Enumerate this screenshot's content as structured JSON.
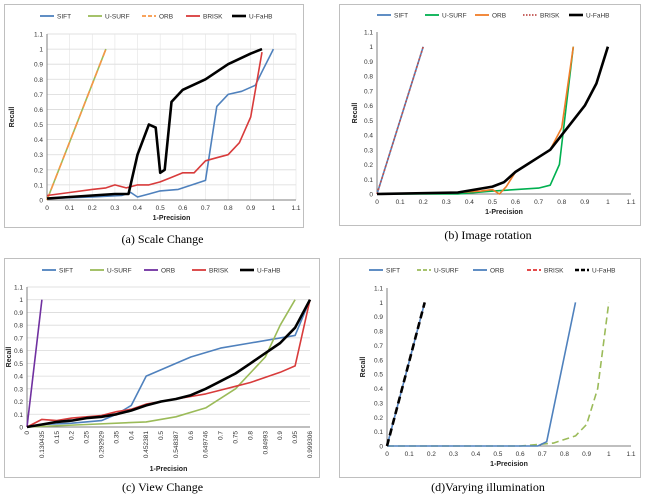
{
  "chart_data": [
    {
      "type": "line",
      "caption": "(a)  Scale Change",
      "xlabel": "1-Precision",
      "ylabel": "Recall",
      "xlim": [
        0,
        1.1
      ],
      "ylim": [
        0,
        1.1
      ],
      "x_ticks": [
        "0",
        "0.1",
        "0.2",
        "0.3",
        "0.4",
        "0.5",
        "0.6",
        "0.7",
        "0.8",
        "0.9",
        "1",
        "1.1"
      ],
      "y_ticks": [
        "0",
        "0.1",
        "0.2",
        "0.3",
        "0.4",
        "0.5",
        "0.6",
        "0.7",
        "0.8",
        "0.9",
        "1",
        "1.1"
      ],
      "legend": "top",
      "grid": true,
      "series": [
        {
          "name": "SIFT",
          "color": "#4f81bd",
          "style": "solid",
          "points": [
            [
              0.0,
              0.01
            ],
            [
              0.2,
              0.02
            ],
            [
              0.33,
              0.03
            ],
            [
              0.37,
              0.05
            ],
            [
              0.4,
              0.02
            ],
            [
              0.45,
              0.04
            ],
            [
              0.5,
              0.06
            ],
            [
              0.58,
              0.07
            ],
            [
              0.64,
              0.1
            ],
            [
              0.7,
              0.13
            ],
            [
              0.75,
              0.62
            ],
            [
              0.8,
              0.7
            ],
            [
              0.86,
              0.72
            ],
            [
              0.92,
              0.76
            ],
            [
              0.95,
              0.85
            ],
            [
              1.0,
              1.0
            ]
          ]
        },
        {
          "name": "U-SURF",
          "color": "#9bbb59",
          "style": "solid",
          "points": [
            [
              0.0,
              0.0
            ],
            [
              0.26,
              1.0
            ]
          ]
        },
        {
          "name": "ORB",
          "color": "#f79646",
          "style": "dashed",
          "points": [
            [
              0.0,
              0.0
            ],
            [
              0.26,
              1.0
            ]
          ]
        },
        {
          "name": "BRISK",
          "color": "#d83b3b",
          "style": "solid",
          "points": [
            [
              0.0,
              0.03
            ],
            [
              0.1,
              0.05
            ],
            [
              0.2,
              0.07
            ],
            [
              0.26,
              0.08
            ],
            [
              0.3,
              0.1
            ],
            [
              0.35,
              0.08
            ],
            [
              0.4,
              0.1
            ],
            [
              0.45,
              0.1
            ],
            [
              0.5,
              0.12
            ],
            [
              0.55,
              0.15
            ],
            [
              0.6,
              0.18
            ],
            [
              0.65,
              0.18
            ],
            [
              0.7,
              0.26
            ],
            [
              0.75,
              0.28
            ],
            [
              0.8,
              0.3
            ],
            [
              0.85,
              0.38
            ],
            [
              0.9,
              0.55
            ],
            [
              0.95,
              0.98
            ]
          ]
        },
        {
          "name": "U-FaHB",
          "color": "#000000",
          "style": "solid",
          "points": [
            [
              0.0,
              0.01
            ],
            [
              0.1,
              0.02
            ],
            [
              0.2,
              0.03
            ],
            [
              0.3,
              0.04
            ],
            [
              0.36,
              0.04
            ],
            [
              0.4,
              0.3
            ],
            [
              0.45,
              0.5
            ],
            [
              0.48,
              0.48
            ],
            [
              0.5,
              0.18
            ],
            [
              0.52,
              0.2
            ],
            [
              0.55,
              0.65
            ],
            [
              0.6,
              0.73
            ],
            [
              0.7,
              0.8
            ],
            [
              0.8,
              0.9
            ],
            [
              0.9,
              0.97
            ],
            [
              0.95,
              1.0
            ]
          ]
        }
      ]
    },
    {
      "type": "line",
      "caption": "(b)  Image rotation",
      "xlabel": "1-Precision",
      "ylabel": "Recall",
      "xlim": [
        0,
        1.1
      ],
      "ylim": [
        0,
        1.1
      ],
      "x_ticks": [
        "0",
        "0.1",
        "0.2",
        "0.3",
        "0.4",
        "0.5",
        "0.6",
        "0.7",
        "0.8",
        "0.9",
        "1",
        "1.1"
      ],
      "y_ticks": [
        "0",
        "0.1",
        "0.2",
        "0.3",
        "0.4",
        "0.5",
        "0.6",
        "0.7",
        "0.8",
        "0.9",
        "1",
        "1.1"
      ],
      "legend": "top",
      "grid": false,
      "series": [
        {
          "name": "SIFT",
          "color": "#4f81bd",
          "style": "solid",
          "points": [
            [
              0.0,
              0.0
            ],
            [
              0.2,
              1.0
            ]
          ]
        },
        {
          "name": "U-SURF",
          "color": "#00b050",
          "style": "solid",
          "points": [
            [
              0.0,
              0.0
            ],
            [
              0.35,
              0.0
            ],
            [
              0.5,
              0.02
            ],
            [
              0.6,
              0.03
            ],
            [
              0.7,
              0.04
            ],
            [
              0.75,
              0.06
            ],
            [
              0.79,
              0.2
            ],
            [
              0.82,
              0.6
            ],
            [
              0.85,
              1.0
            ]
          ]
        },
        {
          "name": "ORB",
          "color": "#f07d28",
          "style": "solid",
          "points": [
            [
              0.0,
              0.0
            ],
            [
              0.35,
              0.01
            ],
            [
              0.45,
              0.02
            ],
            [
              0.5,
              0.03
            ],
            [
              0.53,
              0.0
            ],
            [
              0.56,
              0.05
            ],
            [
              0.6,
              0.15
            ],
            [
              0.65,
              0.2
            ],
            [
              0.7,
              0.25
            ],
            [
              0.75,
              0.3
            ],
            [
              0.8,
              0.45
            ],
            [
              0.85,
              1.0
            ]
          ]
        },
        {
          "name": "BRISK",
          "color": "#c0504d",
          "style": "dotted",
          "points": [
            [
              0.0,
              0.0
            ],
            [
              0.2,
              1.0
            ]
          ]
        },
        {
          "name": "U-FaHB",
          "color": "#000000",
          "style": "solid",
          "points": [
            [
              0.0,
              0.0
            ],
            [
              0.35,
              0.01
            ],
            [
              0.5,
              0.05
            ],
            [
              0.55,
              0.08
            ],
            [
              0.6,
              0.15
            ],
            [
              0.65,
              0.2
            ],
            [
              0.7,
              0.25
            ],
            [
              0.75,
              0.3
            ],
            [
              0.8,
              0.4
            ],
            [
              0.9,
              0.6
            ],
            [
              0.95,
              0.75
            ],
            [
              1.0,
              1.0
            ]
          ]
        }
      ]
    },
    {
      "type": "line",
      "caption": "(c) View Change",
      "xlabel": "1-Precision",
      "ylabel": "Recall",
      "ylim": [
        0,
        1.1
      ],
      "x_ticks": [
        "0",
        "0.130435",
        "0.15",
        "0.2",
        "0.25",
        "0.292929",
        "0.35",
        "0.4",
        "0.452381",
        "0.5",
        "0.548387",
        "0.6",
        "0.649746",
        "0.7",
        "0.75",
        "0.8",
        "0.84993",
        "0.9",
        "0.95",
        "0.999306"
      ],
      "y_ticks": [
        "0",
        "0.1",
        "0.2",
        "0.3",
        "0.4",
        "0.5",
        "0.6",
        "0.7",
        "0.8",
        "0.9",
        "1",
        "1.1"
      ],
      "legend": "top",
      "grid": true,
      "series": [
        {
          "name": "SIFT",
          "color": "#4f81bd",
          "style": "solid",
          "points": [
            [
              0,
              0.0
            ],
            [
              1,
              0.02
            ],
            [
              3,
              0.03
            ],
            [
              5,
              0.05
            ],
            [
              6,
              0.1
            ],
            [
              7,
              0.17
            ],
            [
              8,
              0.4
            ],
            [
              10,
              0.5
            ],
            [
              11,
              0.55
            ],
            [
              13,
              0.62
            ],
            [
              15,
              0.66
            ],
            [
              17,
              0.7
            ],
            [
              18,
              0.72
            ],
            [
              19,
              1.0
            ]
          ]
        },
        {
          "name": "U-SURF",
          "color": "#9bbb59",
          "style": "solid",
          "points": [
            [
              0,
              0.0
            ],
            [
              4,
              0.02
            ],
            [
              8,
              0.04
            ],
            [
              10,
              0.08
            ],
            [
              12,
              0.15
            ],
            [
              14,
              0.3
            ],
            [
              16,
              0.55
            ],
            [
              17,
              0.8
            ],
            [
              18,
              1.0
            ]
          ]
        },
        {
          "name": "ORB",
          "color": "#7030a0",
          "style": "solid",
          "points": [
            [
              0,
              0.0
            ],
            [
              1,
              1.0
            ]
          ]
        },
        {
          "name": "BRISK",
          "color": "#d83b3b",
          "style": "solid",
          "points": [
            [
              0,
              0.0
            ],
            [
              1,
              0.06
            ],
            [
              2,
              0.05
            ],
            [
              3,
              0.07
            ],
            [
              4,
              0.08
            ],
            [
              5,
              0.09
            ],
            [
              6,
              0.12
            ],
            [
              7,
              0.14
            ],
            [
              8,
              0.18
            ],
            [
              9,
              0.2
            ],
            [
              10,
              0.22
            ],
            [
              11,
              0.24
            ],
            [
              12,
              0.26
            ],
            [
              13,
              0.29
            ],
            [
              14,
              0.32
            ],
            [
              15,
              0.35
            ],
            [
              16,
              0.39
            ],
            [
              17,
              0.43
            ],
            [
              18,
              0.48
            ],
            [
              19,
              1.0
            ]
          ]
        },
        {
          "name": "U-FaHB",
          "color": "#000000",
          "style": "solid",
          "points": [
            [
              0,
              0.0
            ],
            [
              1,
              0.02
            ],
            [
              2,
              0.04
            ],
            [
              3,
              0.05
            ],
            [
              4,
              0.07
            ],
            [
              5,
              0.08
            ],
            [
              6,
              0.1
            ],
            [
              7,
              0.13
            ],
            [
              8,
              0.17
            ],
            [
              9,
              0.2
            ],
            [
              10,
              0.22
            ],
            [
              11,
              0.25
            ],
            [
              12,
              0.3
            ],
            [
              13,
              0.36
            ],
            [
              14,
              0.42
            ],
            [
              15,
              0.5
            ],
            [
              16,
              0.58
            ],
            [
              17,
              0.66
            ],
            [
              18,
              0.78
            ],
            [
              19,
              1.0
            ]
          ]
        }
      ]
    },
    {
      "type": "line",
      "caption": "(d)Varying illumination",
      "xlabel": "1-Precision",
      "ylabel": "Recall",
      "xlim": [
        0,
        1.1
      ],
      "ylim": [
        0,
        1.1
      ],
      "x_ticks": [
        "0",
        "0.1",
        "0.2",
        "0.3",
        "0.4",
        "0.5",
        "0.6",
        "0.7",
        "0.8",
        "0.9",
        "1",
        "1.1"
      ],
      "y_ticks": [
        "0",
        "0.1",
        "0.2",
        "0.3",
        "0.4",
        "0.5",
        "0.6",
        "0.7",
        "0.8",
        "0.9",
        "1",
        "1.1"
      ],
      "legend": "top",
      "grid": false,
      "series": [
        {
          "name": "SIFT",
          "color": "#4f81bd",
          "style": "solid",
          "points": [
            [
              0.0,
              0.0
            ],
            [
              0.17,
              1.0
            ]
          ]
        },
        {
          "name": "U-SURF",
          "color": "#9bbb59",
          "style": "dashed",
          "points": [
            [
              0.0,
              0.0
            ],
            [
              0.6,
              0.0
            ],
            [
              0.75,
              0.02
            ],
            [
              0.85,
              0.07
            ],
            [
              0.9,
              0.15
            ],
            [
              0.95,
              0.4
            ],
            [
              1.0,
              1.0
            ]
          ]
        },
        {
          "name": "ORB",
          "color": "#4f81bd",
          "style": "solid",
          "points": [
            [
              0.0,
              0.0
            ],
            [
              0.68,
              0.0
            ],
            [
              0.72,
              0.03
            ],
            [
              0.85,
              1.0
            ]
          ]
        },
        {
          "name": "BRISK",
          "color": "#e03030",
          "style": "dashed",
          "points": [
            [
              0.0,
              0.0
            ],
            [
              0.17,
              1.0
            ]
          ]
        },
        {
          "name": "U-FaHB",
          "color": "#000000",
          "style": "dashed",
          "points": [
            [
              0.0,
              0.0
            ],
            [
              0.17,
              1.0
            ]
          ]
        }
      ]
    }
  ]
}
